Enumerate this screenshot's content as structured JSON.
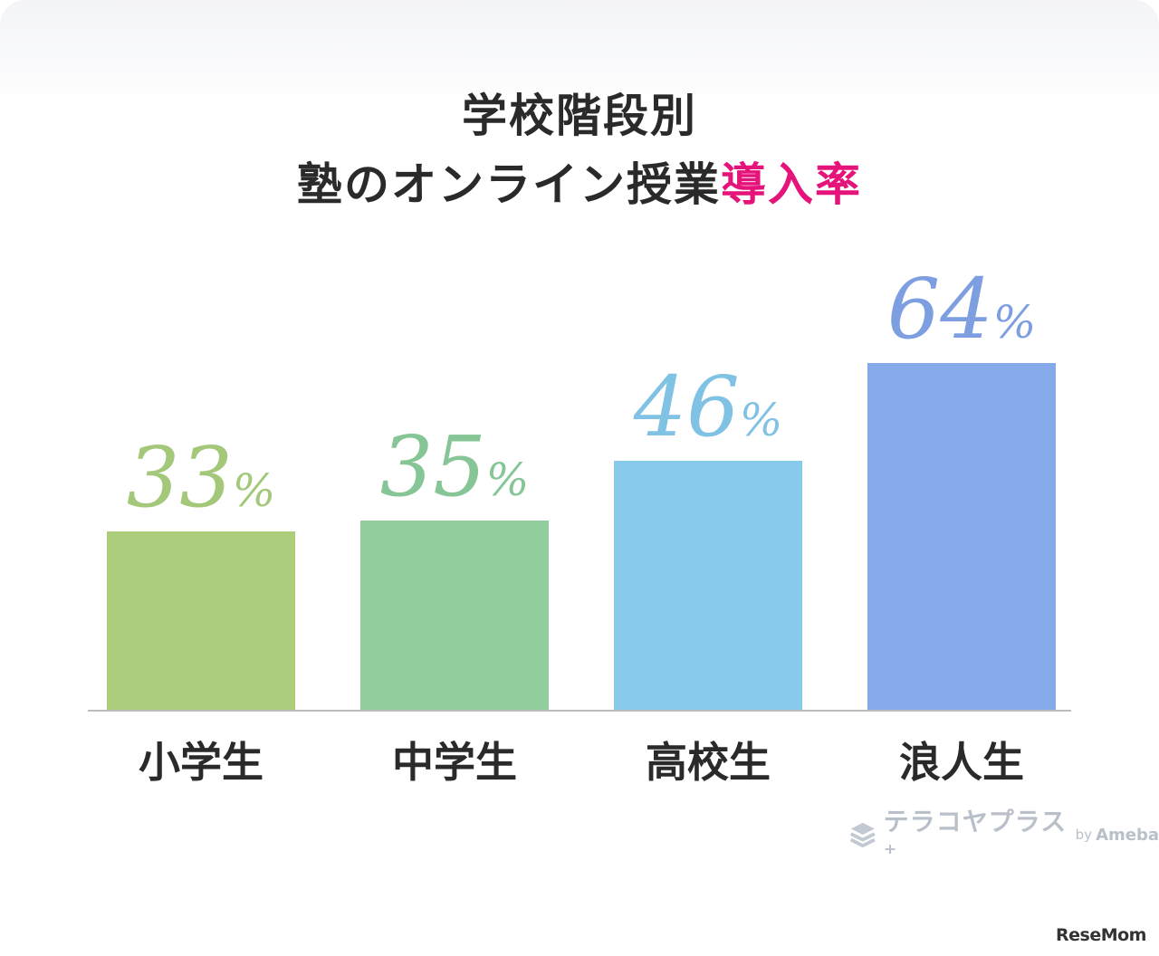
{
  "chart_data": {
    "type": "bar",
    "title": "学校階段別",
    "title_line2": "塾のオンライン授業",
    "title_accent": "導入率",
    "categories": [
      "小学生",
      "中学生",
      "高校生",
      "浪人生"
    ],
    "values": [
      33,
      35,
      46,
      64
    ],
    "value_labels": [
      "33",
      "35",
      "46",
      "64"
    ],
    "unit": "%",
    "ylim": [
      0,
      74
    ],
    "grid": false,
    "legend": "none",
    "colors": [
      "#aecd7c",
      "#92ce9d",
      "#87cae9",
      "#86aae9"
    ],
    "label_colors": [
      "#a4c879",
      "#86c595",
      "#7fc2e3",
      "#7d9fe2"
    ],
    "title_color": "#2a2a2a",
    "accent_color": "#e5147a",
    "axis_color": "#bdbdbd"
  },
  "logo": {
    "icon": "stack-icon",
    "text": "テラコヤプラス⁺",
    "by": "by",
    "brand": "Ameba"
  },
  "watermark": "ReseMom"
}
